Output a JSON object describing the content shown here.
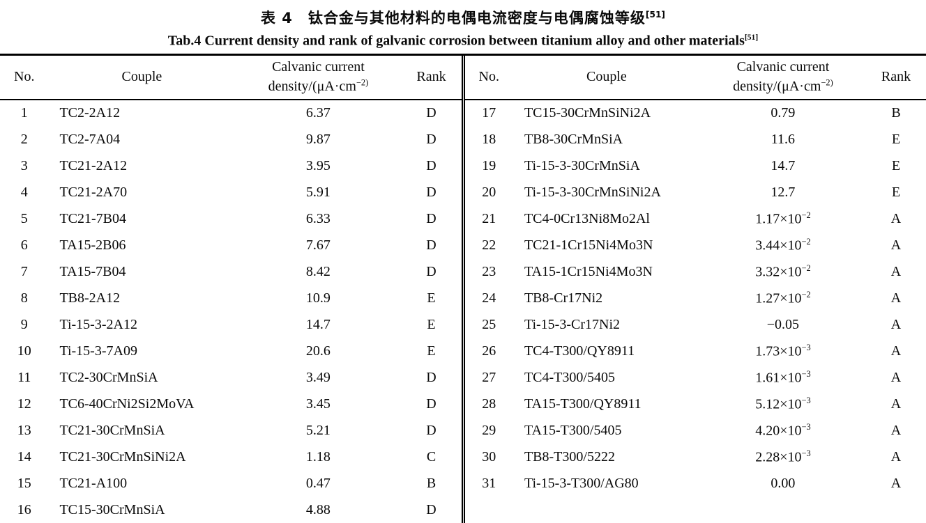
{
  "title": {
    "chinese": "表 4　钛合金与其他材料的电偶电流密度与电偶腐蚀等级",
    "chinese_ref": "[51]",
    "english": "Tab.4 Current density and rank of galvanic corrosion between titanium alloy and other materials",
    "english_ref": "[51]"
  },
  "columns": {
    "no": "No.",
    "couple": "Couple",
    "density_line1": "Calvanic current",
    "density_line2": "density/(μA·cm^−2)",
    "rank": "Rank"
  },
  "chart_data": {
    "type": "table",
    "title": "Tab.4 Current density and rank of galvanic corrosion between titanium alloy and other materials [51]",
    "columns": [
      "No.",
      "Couple",
      "Calvanic current density/(μA·cm−2)",
      "Rank"
    ]
  },
  "tables": [
    {
      "rows": [
        {
          "no": "1",
          "couple": "TC2-2A12",
          "density": "6.37",
          "rank": "D"
        },
        {
          "no": "2",
          "couple": "TC2-7A04",
          "density": "9.87",
          "rank": "D"
        },
        {
          "no": "3",
          "couple": "TC21-2A12",
          "density": "3.95",
          "rank": "D"
        },
        {
          "no": "4",
          "couple": "TC21-2A70",
          "density": "5.91",
          "rank": "D"
        },
        {
          "no": "5",
          "couple": "TC21-7B04",
          "density": "6.33",
          "rank": "D"
        },
        {
          "no": "6",
          "couple": "TA15-2B06",
          "density": "7.67",
          "rank": "D"
        },
        {
          "no": "7",
          "couple": "TA15-7B04",
          "density": "8.42",
          "rank": "D"
        },
        {
          "no": "8",
          "couple": "TB8-2A12",
          "density": "10.9",
          "rank": "E"
        },
        {
          "no": "9",
          "couple": "Ti-15-3-2A12",
          "density": "14.7",
          "rank": "E"
        },
        {
          "no": "10",
          "couple": "Ti-15-3-7A09",
          "density": "20.6",
          "rank": "E"
        },
        {
          "no": "11",
          "couple": "TC2-30CrMnSiA",
          "density": "3.49",
          "rank": "D"
        },
        {
          "no": "12",
          "couple": "TC6-40CrNi2Si2MoVA",
          "density": "3.45",
          "rank": "D"
        },
        {
          "no": "13",
          "couple": "TC21-30CrMnSiA",
          "density": "5.21",
          "rank": "D"
        },
        {
          "no": "14",
          "couple": "TC21-30CrMnSiNi2A",
          "density": "1.18",
          "rank": "C"
        },
        {
          "no": "15",
          "couple": "TC21-A100",
          "density": "0.47",
          "rank": "B"
        },
        {
          "no": "16",
          "couple": "TC15-30CrMnSiA",
          "density": "4.88",
          "rank": "D"
        }
      ]
    },
    {
      "rows": [
        {
          "no": "17",
          "couple": "TC15-30CrMnSiNi2A",
          "density": "0.79",
          "rank": "B"
        },
        {
          "no": "18",
          "couple": "TB8-30CrMnSiA",
          "density": "11.6",
          "rank": "E"
        },
        {
          "no": "19",
          "couple": "Ti-15-3-30CrMnSiA",
          "density": "14.7",
          "rank": "E"
        },
        {
          "no": "20",
          "couple": "Ti-15-3-30CrMnSiNi2A",
          "density": "12.7",
          "rank": "E"
        },
        {
          "no": "21",
          "couple": "TC4-0Cr13Ni8Mo2Al",
          "density": "1.17×10^−2",
          "rank": "A"
        },
        {
          "no": "22",
          "couple": "TC21-1Cr15Ni4Mo3N",
          "density": "3.44×10^−2",
          "rank": "A"
        },
        {
          "no": "23",
          "couple": "TA15-1Cr15Ni4Mo3N",
          "density": "3.32×10^−2",
          "rank": "A"
        },
        {
          "no": "24",
          "couple": "TB8-Cr17Ni2",
          "density": "1.27×10^−2",
          "rank": "A"
        },
        {
          "no": "25",
          "couple": "Ti-15-3-Cr17Ni2",
          "density": "−0.05",
          "rank": "A"
        },
        {
          "no": "26",
          "couple": "TC4-T300/QY8911",
          "density": "1.73×10^−3",
          "rank": "A"
        },
        {
          "no": "27",
          "couple": "TC4-T300/5405",
          "density": "1.61×10^−3",
          "rank": "A"
        },
        {
          "no": "28",
          "couple": "TA15-T300/QY8911",
          "density": "5.12×10^−3",
          "rank": "A"
        },
        {
          "no": "29",
          "couple": "TA15-T300/5405",
          "density": "4.20×10^−3",
          "rank": "A"
        },
        {
          "no": "30",
          "couple": "TB8-T300/5222",
          "density": "2.28×10^−3",
          "rank": "A"
        },
        {
          "no": "31",
          "couple": "Ti-15-3-T300/AG80",
          "density": "0.00",
          "rank": "A"
        }
      ]
    }
  ]
}
